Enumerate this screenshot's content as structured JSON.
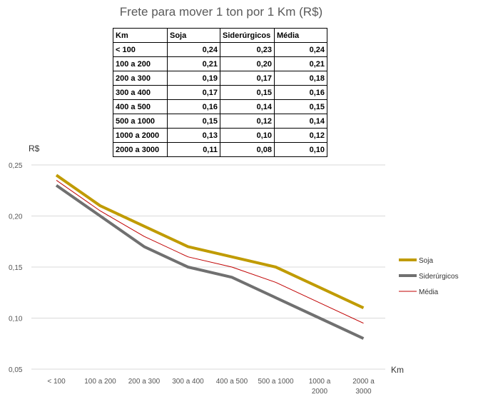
{
  "table": {
    "headers": [
      "Km",
      "Soja",
      "Siderúrgicos",
      "Média"
    ],
    "rows": [
      [
        "< 100",
        "0,24",
        "0,23",
        "0,24"
      ],
      [
        "100 a 200",
        "0,21",
        "0,20",
        "0,21"
      ],
      [
        "200 a 300",
        "0,19",
        "0,17",
        "0,18"
      ],
      [
        "300 a 400",
        "0,17",
        "0,15",
        "0,16"
      ],
      [
        "400 a 500",
        "0,16",
        "0,14",
        "0,15"
      ],
      [
        "500 a 1000",
        "0,15",
        "0,12",
        "0,14"
      ],
      [
        "1000 a 2000",
        "0,13",
        "0,10",
        "0,12"
      ],
      [
        "2000 a 3000",
        "0,11",
        "0,08",
        "0,10"
      ]
    ]
  },
  "chart_data": {
    "type": "line",
    "title": "Frete para mover 1 ton por 1 Km (R$)",
    "ylabel": "R$",
    "xlabel": "Km",
    "categories": [
      "< 100",
      "100 a 200",
      "200 a 300",
      "300 a 400",
      "400 a 500",
      "500 a 1000",
      "1000 a 2000",
      "2000 a 3000"
    ],
    "ylim": [
      0.05,
      0.25
    ],
    "yticks": [
      0.05,
      0.1,
      0.15,
      0.2,
      0.25
    ],
    "ytick_labels": [
      "0,05",
      "0,10",
      "0,15",
      "0,20",
      "0,25"
    ],
    "grid": true,
    "legend": "right",
    "series": [
      {
        "name": "Soja",
        "color": "#C09B00",
        "values": [
          0.24,
          0.21,
          0.19,
          0.17,
          0.16,
          0.15,
          0.13,
          0.11
        ]
      },
      {
        "name": "Siderúrgicos",
        "color": "#707070",
        "values": [
          0.23,
          0.2,
          0.17,
          0.15,
          0.14,
          0.12,
          0.1,
          0.08
        ]
      },
      {
        "name": "Média",
        "color": "#C00000",
        "values": [
          0.235,
          0.205,
          0.18,
          0.16,
          0.15,
          0.135,
          0.115,
          0.095
        ]
      }
    ]
  }
}
